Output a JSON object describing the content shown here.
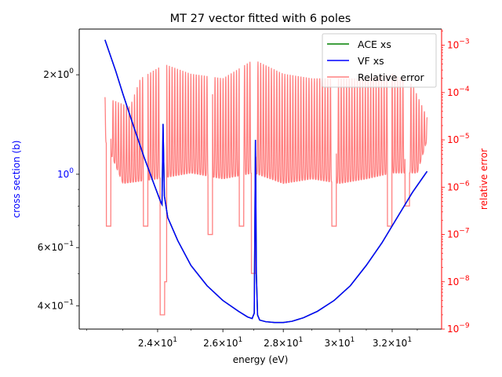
{
  "chart_data": {
    "type": "line",
    "title": "MT 27 vector fitted with 6 poles",
    "xlabel": "energy (eV)",
    "ylabel": "cross section (b)",
    "y2label": "relative error",
    "xscale": "log",
    "yscale": "log",
    "y2scale": "log",
    "xlim": [
      21.8,
      34.0
    ],
    "ylim": [
      0.34,
      2.75
    ],
    "y2lim": [
      1e-09,
      0.0022
    ],
    "x_ticks": [
      {
        "value": 24,
        "base": "2.4",
        "exp": "1"
      },
      {
        "value": 26,
        "base": "2.6",
        "exp": "1"
      },
      {
        "value": 28,
        "base": "2.8",
        "exp": "1"
      },
      {
        "value": 30,
        "base": "3",
        "exp": "1"
      },
      {
        "value": 32,
        "base": "3.2",
        "exp": "1"
      }
    ],
    "y_ticks": [
      {
        "value": 2,
        "base": "2",
        "exp": "0"
      },
      {
        "value": 1,
        "base": "10",
        "exp": "0"
      },
      {
        "value": 0.6,
        "base": "6",
        "exp": "−1"
      },
      {
        "value": 0.4,
        "base": "4",
        "exp": "−1"
      }
    ],
    "y2_ticks": [
      {
        "value": 0.001,
        "base": "10",
        "exp": "−3"
      },
      {
        "value": 0.0001,
        "base": "10",
        "exp": "−4"
      },
      {
        "value": 1e-05,
        "base": "10",
        "exp": "−5"
      },
      {
        "value": 1e-06,
        "base": "10",
        "exp": "−6"
      },
      {
        "value": 1e-07,
        "base": "10",
        "exp": "−7"
      },
      {
        "value": 1e-08,
        "base": "10",
        "exp": "−8"
      },
      {
        "value": 1e-09,
        "base": "10",
        "exp": "−9"
      }
    ],
    "legend": {
      "position": "upper right",
      "entries": [
        {
          "label": "ACE xs",
          "color": "#008000"
        },
        {
          "label": "VF xs",
          "color": "#0000ff"
        },
        {
          "label": "Relative error",
          "color": "#ff8080"
        }
      ]
    },
    "series": [
      {
        "name": "ACE xs",
        "color": "#008000",
        "axis": "left",
        "x": [
          22.5,
          22.8,
          23.0,
          23.3,
          23.6,
          23.9,
          24.1,
          24.13,
          24.16,
          24.2,
          24.3,
          24.6,
          25.0,
          25.5,
          26.0,
          26.5,
          26.8,
          26.95,
          27.02,
          27.06,
          27.09,
          27.13,
          27.2,
          27.4,
          27.7,
          28.0,
          28.3,
          28.7,
          29.2,
          29.8,
          30.4,
          31.0,
          31.6,
          32.2,
          32.8,
          33.4
        ],
        "y": [
          2.55,
          2.05,
          1.75,
          1.4,
          1.13,
          0.93,
          0.82,
          0.81,
          1.42,
          0.86,
          0.74,
          0.63,
          0.53,
          0.46,
          0.415,
          0.385,
          0.37,
          0.366,
          0.38,
          1.27,
          0.5,
          0.375,
          0.362,
          0.358,
          0.356,
          0.356,
          0.359,
          0.368,
          0.385,
          0.415,
          0.46,
          0.53,
          0.62,
          0.74,
          0.88,
          1.02
        ]
      },
      {
        "name": "VF xs",
        "color": "#0000ff",
        "axis": "left",
        "x": [
          22.5,
          22.8,
          23.0,
          23.3,
          23.6,
          23.9,
          24.1,
          24.13,
          24.16,
          24.2,
          24.3,
          24.6,
          25.0,
          25.5,
          26.0,
          26.5,
          26.8,
          26.95,
          27.02,
          27.06,
          27.09,
          27.13,
          27.2,
          27.4,
          27.7,
          28.0,
          28.3,
          28.7,
          29.2,
          29.8,
          30.4,
          31.0,
          31.6,
          32.2,
          32.8,
          33.4
        ],
        "y": [
          2.55,
          2.05,
          1.75,
          1.4,
          1.13,
          0.93,
          0.82,
          0.81,
          1.42,
          0.86,
          0.74,
          0.63,
          0.53,
          0.46,
          0.415,
          0.385,
          0.37,
          0.366,
          0.38,
          1.27,
          0.5,
          0.375,
          0.362,
          0.358,
          0.356,
          0.356,
          0.359,
          0.368,
          0.385,
          0.415,
          0.46,
          0.53,
          0.62,
          0.74,
          0.88,
          1.02
        ]
      },
      {
        "name": "Relative error",
        "color": "#ff8080",
        "axis": "right",
        "x_range": [
          22.5,
          33.4
        ],
        "upper_envelope": [
          [
            22.5,
            8e-05
          ],
          [
            23.2,
            5e-05
          ],
          [
            23.5,
            0.0002
          ],
          [
            24.2,
            0.0004
          ],
          [
            25.0,
            0.00025
          ],
          [
            26.0,
            0.0002
          ],
          [
            27.0,
            0.0005
          ],
          [
            28.0,
            0.00025
          ],
          [
            29.0,
            0.0002
          ],
          [
            30.0,
            0.0002
          ],
          [
            31.0,
            0.0002
          ],
          [
            32.0,
            0.00025
          ],
          [
            32.8,
            0.00015
          ],
          [
            33.4,
            3e-05
          ]
        ],
        "baseline": [
          [
            22.5,
            1e-05
          ],
          [
            23.0,
            1.2e-06
          ],
          [
            24.0,
            1.5e-06
          ],
          [
            25.0,
            2e-06
          ],
          [
            26.0,
            1.5e-06
          ],
          [
            27.0,
            2e-06
          ],
          [
            28.0,
            1.2e-06
          ],
          [
            29.0,
            1.5e-06
          ],
          [
            30.0,
            1.2e-06
          ],
          [
            31.0,
            1.5e-06
          ],
          [
            32.0,
            2e-06
          ],
          [
            33.0,
            2e-06
          ],
          [
            33.4,
            1e-05
          ]
        ],
        "dips": [
          [
            22.6,
            1.5e-07
          ],
          [
            23.65,
            1.5e-07
          ],
          [
            24.14,
            2e-09
          ],
          [
            24.2,
            1e-08
          ],
          [
            25.6,
            1e-07
          ],
          [
            26.6,
            1.5e-07
          ],
          [
            27.0,
            1.5e-08
          ],
          [
            29.8,
            1.5e-07
          ],
          [
            31.9,
            1.5e-07
          ],
          [
            32.6,
            4e-07
          ]
        ]
      }
    ]
  }
}
